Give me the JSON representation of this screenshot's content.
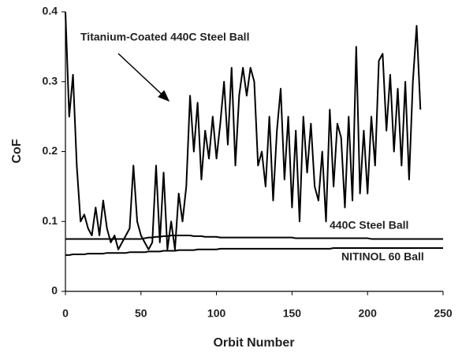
{
  "chart_data": {
    "type": "line",
    "x_label": "Orbit Number",
    "y_label": "CoF",
    "x": [
      0,
      2.5,
      5,
      7.5,
      10,
      12.5,
      15,
      17.5,
      20,
      22.5,
      25,
      27.5,
      30,
      32.5,
      35,
      37.5,
      40,
      42.5,
      45,
      47.5,
      50,
      52.5,
      55,
      57.5,
      60,
      62.5,
      65,
      67.5,
      70,
      72.5,
      75,
      77.5,
      80,
      82.5,
      85,
      87.5,
      90,
      92.5,
      95,
      97.5,
      100,
      102.5,
      105,
      107.5,
      110,
      112.5,
      115,
      117.5,
      120,
      122.5,
      125,
      127.5,
      130,
      132.5,
      135,
      137.5,
      140,
      142.5,
      145,
      147.5,
      150,
      152.5,
      155,
      157.5,
      160,
      162.5,
      165,
      167.5,
      170,
      172.5,
      175,
      177.5,
      180,
      182.5,
      185,
      187.5,
      190,
      192.5,
      195,
      197.5,
      200,
      202.5,
      205,
      207.5,
      210,
      212.5,
      215,
      217.5,
      220,
      222.5,
      225,
      227.5,
      230,
      232.5,
      235,
      237.5,
      240,
      242.5,
      245,
      247.5,
      250
    ],
    "series": [
      {
        "name": "Titanium-Coated 440C  Steel Ball",
        "color": "#000000",
        "values": [
          0.4,
          0.25,
          0.31,
          0.18,
          0.1,
          0.11,
          0.09,
          0.08,
          0.12,
          0.08,
          0.13,
          0.09,
          0.07,
          0.08,
          0.06,
          0.07,
          0.08,
          0.09,
          0.18,
          0.1,
          0.08,
          0.07,
          0.06,
          0.07,
          0.18,
          0.07,
          0.17,
          0.06,
          0.1,
          0.06,
          0.14,
          0.1,
          0.15,
          0.28,
          0.2,
          0.27,
          0.16,
          0.23,
          0.19,
          0.25,
          0.19,
          0.24,
          0.3,
          0.21,
          0.32,
          0.18,
          0.28,
          0.32,
          0.28,
          0.32,
          0.3,
          0.18,
          0.2,
          0.15,
          0.25,
          0.13,
          0.23,
          0.29,
          0.16,
          0.25,
          0.12,
          0.23,
          0.1,
          0.25,
          0.17,
          0.24,
          0.15,
          0.13,
          0.2,
          0.1,
          0.26,
          0.15,
          0.24,
          0.22,
          0.12,
          0.25,
          0.13,
          0.35,
          0.14,
          0.23,
          0.14,
          0.25,
          0.18,
          0.33,
          0.34,
          0.23,
          0.31,
          0.2,
          0.29,
          0.18,
          0.3,
          0.16,
          0.3,
          0.38,
          0.26,
          null,
          null,
          null,
          null,
          null,
          null
        ]
      },
      {
        "name": "440C Steel Ball",
        "color": "#000000",
        "values": [
          0.075,
          0.075,
          0.075,
          0.075,
          0.075,
          0.075,
          0.075,
          0.075,
          0.075,
          0.075,
          0.075,
          0.075,
          0.075,
          0.075,
          0.075,
          0.075,
          0.075,
          0.075,
          0.075,
          0.075,
          0.075,
          0.076,
          0.077,
          0.077,
          0.078,
          0.078,
          0.079,
          0.079,
          0.08,
          0.08,
          0.08,
          0.08,
          0.08,
          0.08,
          0.079,
          0.079,
          0.079,
          0.078,
          0.078,
          0.078,
          0.078,
          0.077,
          0.077,
          0.077,
          0.077,
          0.077,
          0.077,
          0.077,
          0.077,
          0.077,
          0.077,
          0.077,
          0.077,
          0.077,
          0.077,
          0.077,
          0.077,
          0.077,
          0.077,
          0.077,
          0.077,
          0.076,
          0.076,
          0.076,
          0.076,
          0.076,
          0.076,
          0.076,
          0.076,
          0.076,
          0.076,
          0.076,
          0.076,
          0.076,
          0.076,
          0.076,
          0.076,
          0.076,
          0.076,
          0.076,
          0.076,
          0.075,
          0.075,
          0.075,
          0.075,
          0.075,
          0.075,
          0.075,
          0.075,
          0.075,
          0.075,
          0.075,
          0.075,
          0.075,
          0.075,
          0.075,
          0.075,
          0.075,
          0.075,
          0.075,
          0.075
        ]
      },
      {
        "name": "NITINOL 60 Ball",
        "color": "#000000",
        "values": [
          0.052,
          0.052,
          0.053,
          0.053,
          0.053,
          0.053,
          0.054,
          0.054,
          0.054,
          0.054,
          0.054,
          0.055,
          0.055,
          0.055,
          0.055,
          0.055,
          0.055,
          0.056,
          0.056,
          0.056,
          0.056,
          0.056,
          0.057,
          0.057,
          0.057,
          0.057,
          0.058,
          0.058,
          0.058,
          0.058,
          0.059,
          0.059,
          0.059,
          0.059,
          0.059,
          0.06,
          0.06,
          0.06,
          0.06,
          0.06,
          0.06,
          0.061,
          0.061,
          0.061,
          0.061,
          0.061,
          0.061,
          0.061,
          0.061,
          0.061,
          0.061,
          0.061,
          0.061,
          0.061,
          0.061,
          0.061,
          0.061,
          0.061,
          0.061,
          0.061,
          0.061,
          0.061,
          0.061,
          0.061,
          0.061,
          0.061,
          0.061,
          0.061,
          0.061,
          0.061,
          0.061,
          0.062,
          0.062,
          0.062,
          0.062,
          0.062,
          0.062,
          0.062,
          0.062,
          0.062,
          0.062,
          0.062,
          0.062,
          0.062,
          0.062,
          0.062,
          0.062,
          0.062,
          0.062,
          0.062,
          0.062,
          0.062,
          0.062,
          0.062,
          0.062,
          0.062,
          0.062,
          0.062,
          0.062,
          0.062,
          0.062
        ]
      }
    ],
    "xlim": [
      0,
      250
    ],
    "xticks": [
      0,
      50,
      100,
      150,
      200,
      250
    ],
    "ylim": [
      0,
      0.4
    ],
    "yticks": [
      0,
      0.1,
      0.2,
      0.3,
      0.4
    ],
    "grid": false
  }
}
